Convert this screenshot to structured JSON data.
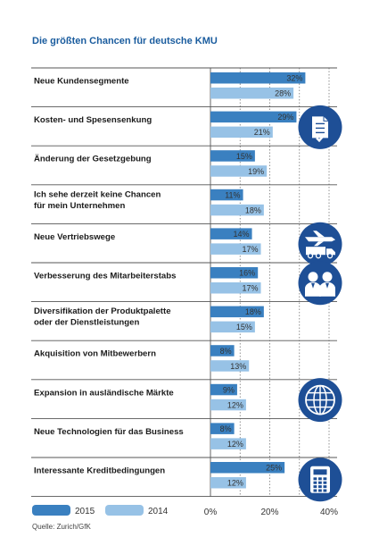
{
  "colors": {
    "series_2015": "#3a80c0",
    "series_2014": "#97c2e6",
    "title": "#1a5c9e",
    "icon_circle": "#1e4f96"
  },
  "icons": [
    {
      "category_index": 1,
      "name": "document-checklist-icon"
    },
    {
      "category_index": 4,
      "name": "airplane-truck-icon"
    },
    {
      "category_index": 5,
      "name": "people-icon"
    },
    {
      "category_index": 8,
      "name": "globe-icon"
    },
    {
      "category_index": 10,
      "name": "calculator-icon"
    }
  ],
  "source": "Quelle: Zurich/GfK",
  "chart_data": {
    "type": "bar",
    "orientation": "horizontal",
    "title": "Die größten Chancen für deutsche KMU",
    "categories": [
      [
        "Neue Kundensegmente"
      ],
      [
        "Kosten- und Spesensenkung"
      ],
      [
        "Änderung der Gesetzgebung"
      ],
      [
        "Ich sehe derzeit keine Chancen",
        "für mein Unternehmen"
      ],
      [
        "Neue Vertriebswege"
      ],
      [
        "Verbesserung des Mitarbeiterstabs"
      ],
      [
        "Diversifikation der Produktpalette",
        "oder der Dienstleistungen"
      ],
      [
        "Akquisition von Mitbewerbern"
      ],
      [
        "Expansion in ausländische Märkte"
      ],
      [
        "Neue Technologien für das Business"
      ],
      [
        "Interessante Kreditbedingungen"
      ]
    ],
    "series": [
      {
        "name": "2015",
        "values": [
          32,
          29,
          15,
          11,
          14,
          16,
          18,
          8,
          9,
          8,
          25
        ]
      },
      {
        "name": "2014",
        "values": [
          28,
          21,
          19,
          18,
          17,
          17,
          15,
          13,
          12,
          12,
          12
        ]
      }
    ],
    "value_suffix": "%",
    "xlim": [
      0,
      40
    ],
    "xticks": [
      "0%",
      "20%",
      "40%"
    ],
    "grid": "vertical dotted lines every 10%",
    "legend_position": "bottom-left"
  }
}
